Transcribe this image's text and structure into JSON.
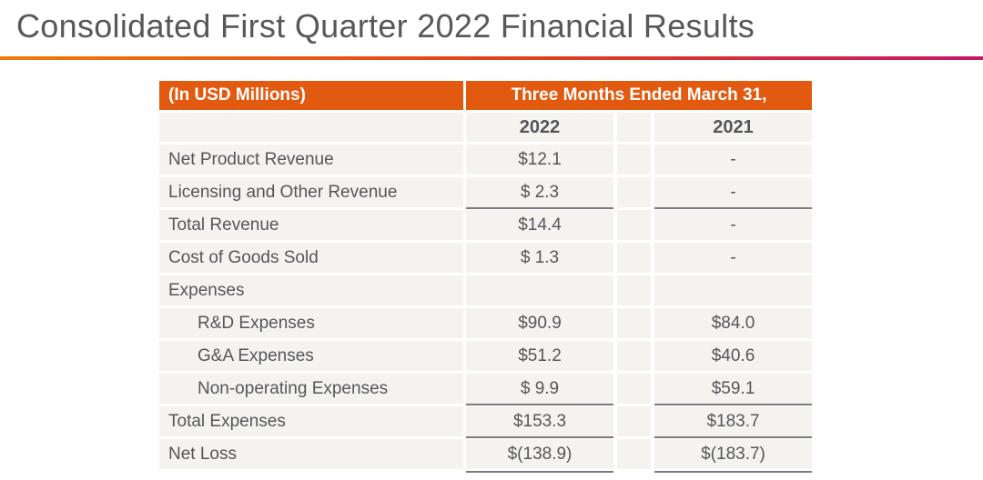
{
  "slide": {
    "title": "Consolidated First Quarter 2022 Financial Results"
  },
  "table": {
    "unit_label": "(In USD Millions)",
    "period_label": "Three Months Ended March 31,",
    "years": {
      "col2022": "2022",
      "col2021": "2021"
    },
    "rows": [
      {
        "label": "Net Product Revenue",
        "v2022": "$12.1",
        "v2021": "-",
        "indent": false,
        "lineAbove": false,
        "lineBelow": false
      },
      {
        "label": "Licensing and Other Revenue",
        "v2022": "$ 2.3",
        "v2021": "-",
        "indent": false,
        "lineAbove": false,
        "lineBelow": false
      },
      {
        "label": "Total Revenue",
        "v2022": "$14.4",
        "v2021": "-",
        "indent": false,
        "lineAbove": true,
        "lineBelow": false
      },
      {
        "label": "Cost of Goods Sold",
        "v2022": "$ 1.3",
        "v2021": "-",
        "indent": false,
        "lineAbove": false,
        "lineBelow": false
      },
      {
        "label": "Expenses",
        "v2022": "",
        "v2021": "",
        "indent": false,
        "lineAbove": false,
        "lineBelow": false
      },
      {
        "label": "R&D Expenses",
        "v2022": "$90.9",
        "v2021": "$84.0",
        "indent": true,
        "lineAbove": false,
        "lineBelow": false
      },
      {
        "label": "G&A Expenses",
        "v2022": "$51.2",
        "v2021": "$40.6",
        "indent": true,
        "lineAbove": false,
        "lineBelow": false
      },
      {
        "label": "Non-operating Expenses",
        "v2022": "$ 9.9",
        "v2021": "$59.1",
        "indent": true,
        "lineAbove": false,
        "lineBelow": false
      },
      {
        "label": "Total Expenses",
        "v2022": "$153.3",
        "v2021": "$183.7",
        "indent": false,
        "lineAbove": true,
        "lineBelow": false
      },
      {
        "label": "Net Loss",
        "v2022": "$(138.9)",
        "v2021": "$(183.7)",
        "indent": false,
        "lineAbove": true,
        "lineBelow": true
      }
    ]
  },
  "colors": {
    "accent_orange": "#E25A10",
    "row_background": "#F5F3F0",
    "text_dark": "#54565A",
    "header_text": "#FFFFFF",
    "summation_line": "#797B80",
    "divider_gradient": [
      "#F0790A",
      "#E03E1C",
      "#C21A67"
    ]
  }
}
